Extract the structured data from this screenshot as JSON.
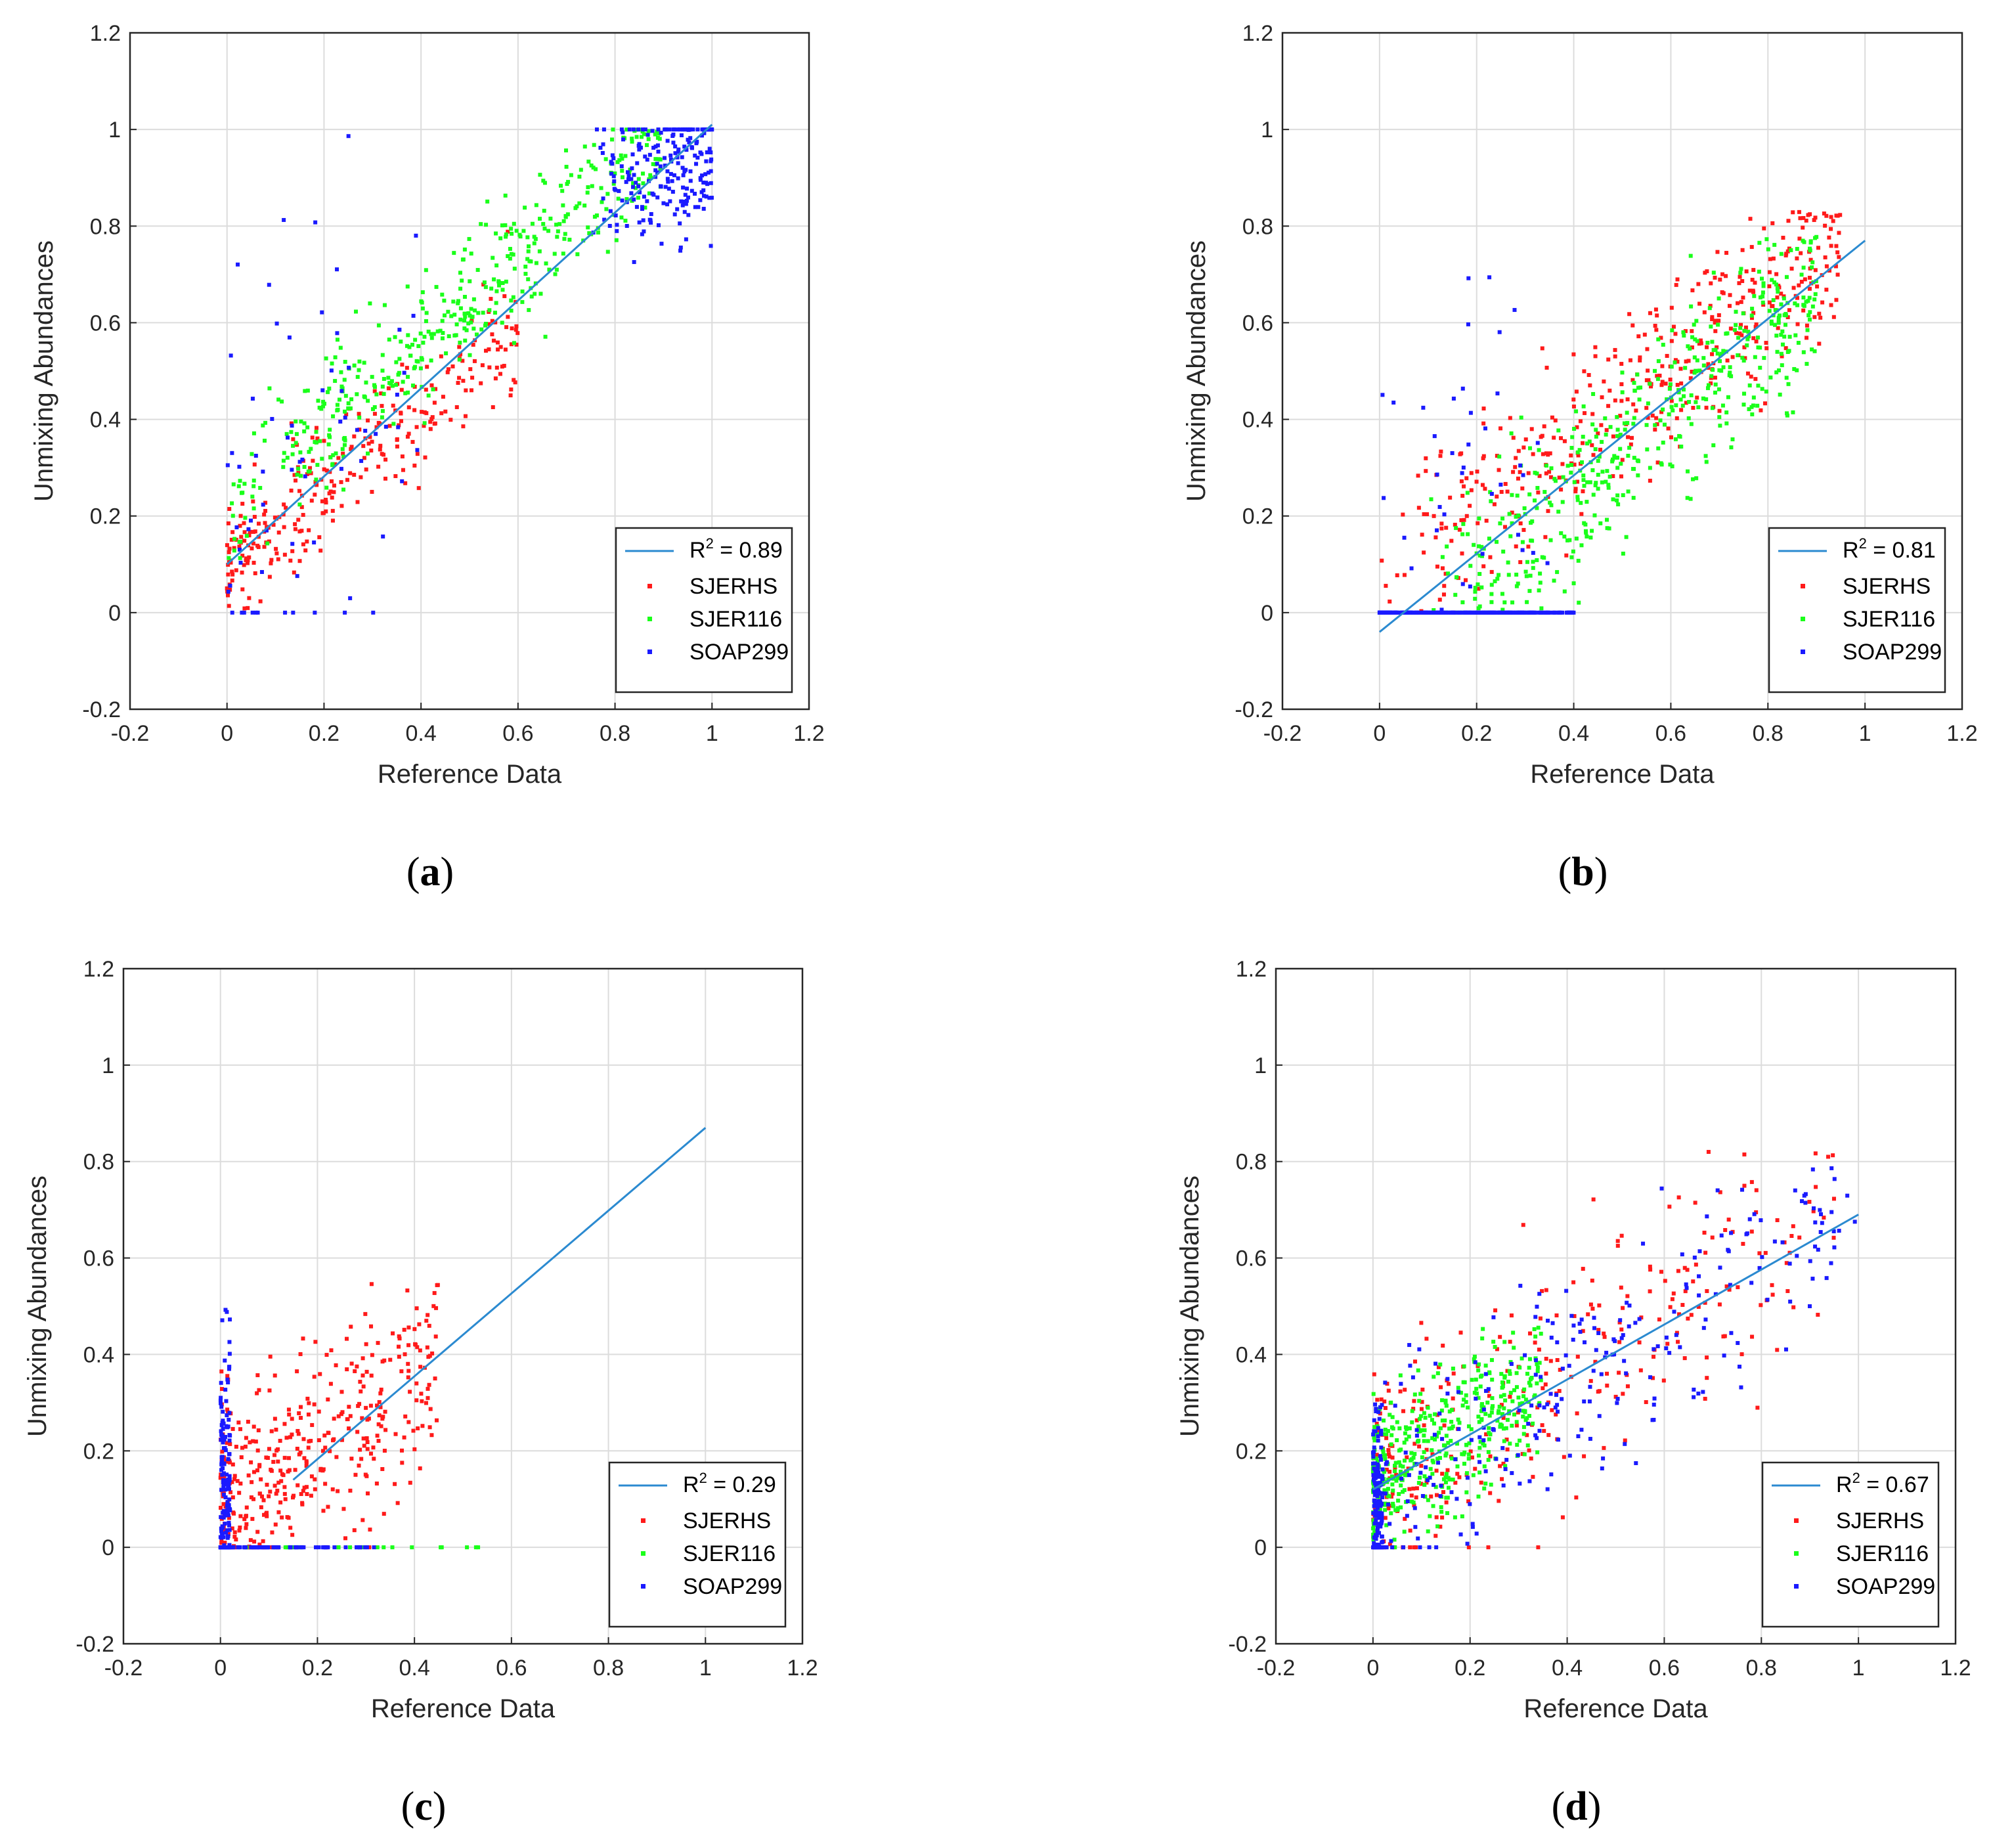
{
  "colors": {
    "fit_line": "#2b8ad0",
    "SJERHS": "#ff1a1a",
    "SJER116": "#1aff1a",
    "SOAP299": "#1a1aff",
    "grid": "#dcdcdc",
    "axis": "#262626"
  },
  "chart_data": [
    {
      "id": "a",
      "panel_label": "a",
      "type": "scatter",
      "xlabel": "Reference Data",
      "ylabel": "Unmixing Abundances",
      "xlim": [
        -0.2,
        1.2
      ],
      "ylim": [
        -0.2,
        1.2
      ],
      "xticks": [
        "-0.2",
        "0",
        "0.2",
        "0.4",
        "0.6",
        "0.8",
        "1",
        "1.2"
      ],
      "yticks": [
        "-0.2",
        "0",
        "0.2",
        "0.4",
        "0.6",
        "0.8",
        "1",
        "1.2"
      ],
      "grid": true,
      "legend_position": "bottom-right",
      "fit": {
        "label": "R",
        "sup": "2",
        "value": " = 0.89",
        "x": [
          0,
          1
        ],
        "y": [
          0.1,
          1.01
        ]
      },
      "series": [
        {
          "name": "SJERHS",
          "spec": {
            "n": 300,
            "xmin": 0,
            "xmax": 0.6,
            "skew": 1.4,
            "slope": 0.8,
            "intercept": 0.1,
            "noise": 0.06,
            "clip0": false,
            "cap1": false,
            "ymin": 0,
            "ymax": 1
          }
        },
        {
          "name": "SJER116",
          "spec": {
            "n": 450,
            "xmin": 0,
            "xmax": 0.9,
            "skew": 0.9,
            "slope": 0.85,
            "intercept": 0.22,
            "noise": 0.07,
            "clip0": false,
            "cap1": false,
            "ymin": 0,
            "ymax": 1
          }
        },
        {
          "name": "SOAP299",
          "spec": {
            "n": 220,
            "xmin": 0.75,
            "xmax": 1.0,
            "skew": 0.6,
            "slope": 0.3,
            "intercept": 0.65,
            "noise": 0.08,
            "clip0": false,
            "cap1": true,
            "ymin": 0,
            "ymax": 1
          },
          "extra": {
            "n": 70,
            "xmin": 0,
            "xmax": 0.4,
            "skew": 1.5,
            "slope": 0.8,
            "intercept": 0.15,
            "noise": 0.25,
            "clip0": true,
            "cap1": false,
            "ymin": 0,
            "ymax": 1
          }
        }
      ]
    },
    {
      "id": "b",
      "panel_label": "b",
      "type": "scatter",
      "xlabel": "Reference Data",
      "ylabel": "Unmixing Abundances",
      "xlim": [
        -0.2,
        1.2
      ],
      "ylim": [
        -0.2,
        1.2
      ],
      "xticks": [
        "-0.2",
        "0",
        "0.2",
        "0.4",
        "0.6",
        "0.8",
        "1",
        "1.2"
      ],
      "yticks": [
        "-0.2",
        "0",
        "0.2",
        "0.4",
        "0.6",
        "0.8",
        "1",
        "1.2"
      ],
      "grid": true,
      "legend_position": "bottom-right",
      "fit": {
        "label": "R",
        "sup": "2",
        "value": " = 0.81",
        "x": [
          0,
          1
        ],
        "y": [
          -0.04,
          0.77
        ]
      },
      "series": [
        {
          "name": "SJERHS",
          "spec": {
            "n": 420,
            "xmin": 0,
            "xmax": 0.95,
            "skew": 0.7,
            "slope": 0.72,
            "intercept": 0.08,
            "noise": 0.09,
            "clip0": false,
            "cap1": false,
            "ymin": 0,
            "ymax": 0.83
          }
        },
        {
          "name": "SJER116",
          "spec": {
            "n": 500,
            "xmin": 0.1,
            "xmax": 0.9,
            "skew": 0.8,
            "slope": 0.85,
            "intercept": -0.1,
            "noise": 0.1,
            "clip0": true,
            "cap1": false,
            "ymin": 0,
            "ymax": 0.78
          }
        },
        {
          "name": "SOAP299",
          "spec": {
            "n": 260,
            "xmin": 0,
            "xmax": 0.4,
            "skew": 1.6,
            "slope": 0.0,
            "intercept": 0.0,
            "noise": 0.0,
            "clip0": true,
            "cap1": false,
            "ymin": 0,
            "ymax": 0.7
          },
          "extra": {
            "n": 45,
            "xmin": 0,
            "xmax": 0.35,
            "skew": 1.0,
            "slope": 0.8,
            "intercept": 0.1,
            "noise": 0.22,
            "clip0": true,
            "cap1": false,
            "ymin": 0,
            "ymax": 0.7
          }
        }
      ]
    },
    {
      "id": "c",
      "panel_label": "c",
      "type": "scatter",
      "xlabel": "Reference Data",
      "ylabel": "Unmixing Abundances",
      "xlim": [
        -0.2,
        1.2
      ],
      "ylim": [
        -0.2,
        1.2
      ],
      "xticks": [
        "-0.2",
        "0",
        "0.2",
        "0.4",
        "0.6",
        "0.8",
        "1",
        "1.2"
      ],
      "yticks": [
        "-0.2",
        "0",
        "0.2",
        "0.4",
        "0.6",
        "0.8",
        "1",
        "1.2"
      ],
      "grid": true,
      "legend_position": "bottom-right",
      "fit": {
        "label": "R",
        "sup": "2",
        "value": " = 0.29",
        "x": [
          0.15,
          1
        ],
        "y": [
          0.14,
          0.87
        ]
      },
      "series": [
        {
          "name": "SJERHS",
          "spec": {
            "n": 420,
            "xmin": 0,
            "xmax": 0.45,
            "skew": 1.6,
            "slope": 0.75,
            "intercept": 0.06,
            "noise": 0.11,
            "clip0": true,
            "cap1": false,
            "ymin": 0,
            "ymax": 0.55
          }
        },
        {
          "name": "SJER116",
          "spec": {
            "n": 25,
            "xmin": 0.05,
            "xmax": 0.55,
            "skew": 1.2,
            "slope": 0.0,
            "intercept": 0.0,
            "noise": 0.0,
            "clip0": true,
            "cap1": false,
            "ymin": 0,
            "ymax": 0.1
          }
        },
        {
          "name": "SOAP299",
          "spec": {
            "n": 160,
            "xmin": 0,
            "xmax": 0.02,
            "skew": 1.0,
            "slope": 0.0,
            "intercept": 0.12,
            "noise": 0.15,
            "clip0": true,
            "cap1": false,
            "ymin": 0,
            "ymax": 0.5
          },
          "extra": {
            "n": 70,
            "xmin": 0,
            "xmax": 0.32,
            "skew": 1.5,
            "slope": 0.0,
            "intercept": 0.0,
            "noise": 0.0,
            "clip0": true,
            "cap1": false,
            "ymin": 0,
            "ymax": 0.5
          }
        }
      ]
    },
    {
      "id": "d",
      "panel_label": "d",
      "type": "scatter",
      "xlabel": "Reference Data",
      "ylabel": "Unmixing Abundances",
      "xlim": [
        -0.2,
        1.2
      ],
      "ylim": [
        -0.2,
        1.2
      ],
      "xticks": [
        "-0.2",
        "0",
        "0.2",
        "0.4",
        "0.6",
        "0.8",
        "1",
        "1.2"
      ],
      "yticks": [
        "-0.2",
        "0",
        "0.2",
        "0.4",
        "0.6",
        "0.8",
        "1",
        "1.2"
      ],
      "grid": true,
      "legend_position": "bottom-right",
      "fit": {
        "label": "R",
        "sup": "2",
        "value": " = 0.67",
        "x": [
          0,
          1
        ],
        "y": [
          0.12,
          0.69
        ]
      },
      "series": [
        {
          "name": "SJERHS",
          "spec": {
            "n": 330,
            "xmin": 0,
            "xmax": 0.95,
            "skew": 1.7,
            "slope": 0.62,
            "intercept": 0.1,
            "noise": 0.12,
            "clip0": true,
            "cap1": false,
            "ymin": 0,
            "ymax": 0.82
          }
        },
        {
          "name": "SJER116",
          "spec": {
            "n": 430,
            "xmin": 0,
            "xmax": 0.35,
            "skew": 1.6,
            "slope": 0.6,
            "intercept": 0.14,
            "noise": 0.07,
            "clip0": true,
            "cap1": false,
            "ymin": 0,
            "ymax": 0.46
          }
        },
        {
          "name": "SOAP299",
          "spec": {
            "n": 260,
            "xmin": 0,
            "xmax": 1.0,
            "skew": 1.3,
            "slope": 0.6,
            "intercept": 0.1,
            "noise": 0.12,
            "clip0": true,
            "cap1": false,
            "ymin": 0,
            "ymax": 0.8
          },
          "extra": {
            "n": 130,
            "xmin": 0,
            "xmax": 0.02,
            "skew": 1.0,
            "slope": 0.0,
            "intercept": 0.1,
            "noise": 0.09,
            "clip0": true,
            "cap1": false,
            "ymin": 0,
            "ymax": 0.3
          }
        }
      ]
    }
  ]
}
